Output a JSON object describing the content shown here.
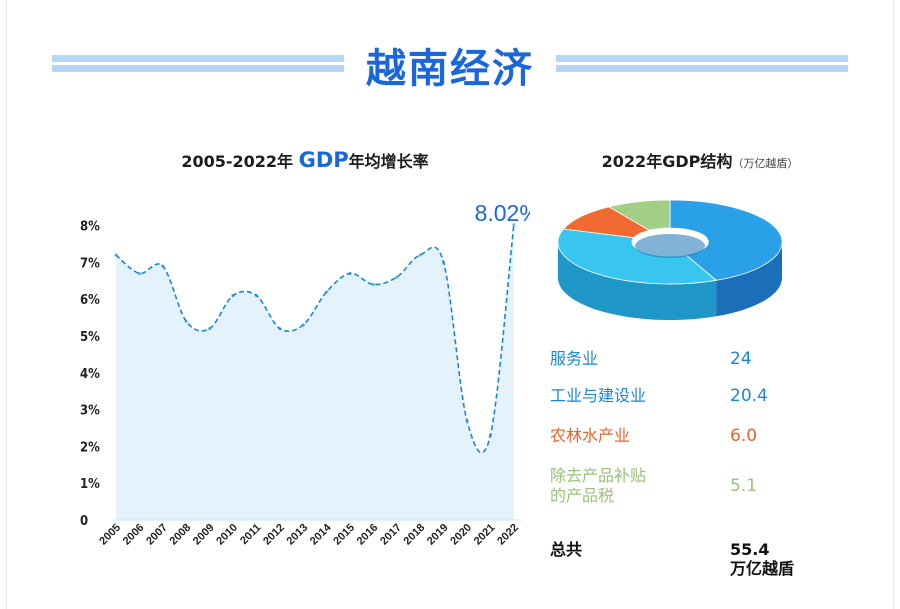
{
  "page": {
    "title": "越南经济"
  },
  "line_panel": {
    "title_prefix": "2005-2022年 ",
    "title_gdp": "GDP",
    "title_suffix": "年均增长率",
    "annotation": "8.02%"
  },
  "pie_panel": {
    "title": "2022年GDP结构",
    "unit": "（万亿越盾）"
  },
  "colors": {
    "accent_blue": "#1a67dc",
    "band": "#b6d6f6",
    "services": "#2aa0e8",
    "industry": "#39c6ee",
    "agriculture": "#f06a32",
    "taxes": "#a2cf86"
  },
  "legend": [
    {
      "label": "服务业",
      "value": "24"
    },
    {
      "label": "工业与建设业",
      "value": "20.4"
    },
    {
      "label": "农林水产业",
      "value": "6.0"
    },
    {
      "label": "除去产品补贴",
      "label2": "的产品税",
      "value": "5.1"
    },
    {
      "label": "总共",
      "value": "55.4",
      "value2": "万亿越盾"
    }
  ],
  "chart_data": [
    {
      "type": "area",
      "title": "2005-2022年 GDP年均增长率",
      "x": [
        "2005",
        "2006",
        "2007",
        "2008",
        "2009",
        "2010",
        "2011",
        "2012",
        "2013",
        "2014",
        "2015",
        "2016",
        "2017",
        "2018",
        "2019",
        "2020",
        "2021",
        "2022"
      ],
      "values": [
        7.2,
        6.7,
        6.9,
        5.4,
        5.2,
        6.1,
        6.1,
        5.2,
        5.3,
        6.2,
        6.7,
        6.4,
        6.6,
        7.2,
        7.0,
        2.7,
        2.3,
        8.02
      ],
      "yticks": [
        "0",
        "1%",
        "2%",
        "3%",
        "4%",
        "5%",
        "6%",
        "7%",
        "8%"
      ],
      "ylim": [
        0,
        8
      ],
      "line_style": "dashed",
      "fill": "#e4f2fb",
      "line_color": "#1a86d6",
      "annotation": {
        "x": "2022",
        "text": "8.02%"
      }
    },
    {
      "type": "pie",
      "title": "2022年GDP结构",
      "unit": "万亿越盾",
      "categories": [
        "服务业",
        "工业与建设业",
        "农林水产业",
        "除去产品补贴的产品税"
      ],
      "values": [
        24,
        20.4,
        6.0,
        5.1
      ],
      "total": 55.4,
      "style": "3d-ring"
    }
  ]
}
